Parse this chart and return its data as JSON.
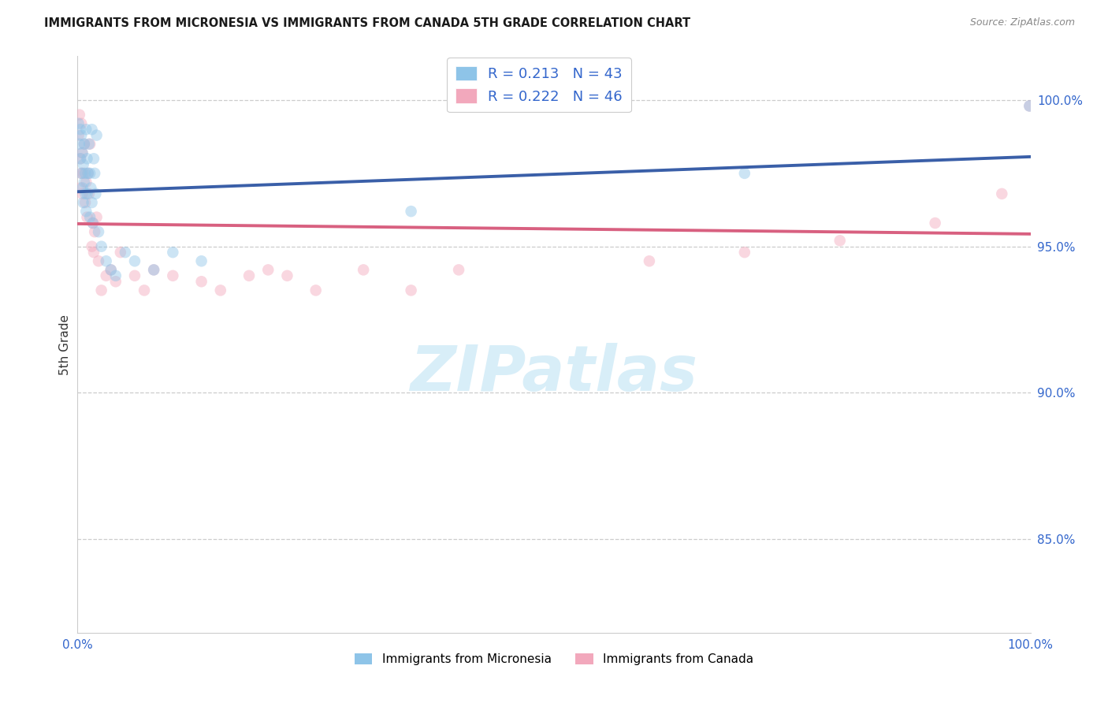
{
  "title": "IMMIGRANTS FROM MICRONESIA VS IMMIGRANTS FROM CANADA 5TH GRADE CORRELATION CHART",
  "source": "Source: ZipAtlas.com",
  "ylabel": "5th Grade",
  "y_ticks": [
    0.85,
    0.9,
    0.95,
    1.0
  ],
  "y_tick_labels": [
    "85.0%",
    "90.0%",
    "95.0%",
    "100.0%"
  ],
  "xlim": [
    0.0,
    1.0
  ],
  "ylim": [
    0.818,
    1.015
  ],
  "blue_R": 0.213,
  "blue_N": 43,
  "pink_R": 0.222,
  "pink_N": 46,
  "blue_color": "#8EC4E8",
  "pink_color": "#F2A8BC",
  "blue_line_color": "#3A5FA8",
  "pink_line_color": "#D86080",
  "scatter_alpha": 0.45,
  "scatter_size": 110,
  "watermark_text": "ZIPatlas",
  "watermark_color": "#d8eef8",
  "blue_x": [
    0.001,
    0.002,
    0.003,
    0.003,
    0.004,
    0.004,
    0.005,
    0.005,
    0.006,
    0.006,
    0.007,
    0.007,
    0.008,
    0.008,
    0.009,
    0.009,
    0.01,
    0.01,
    0.011,
    0.012,
    0.013,
    0.013,
    0.014,
    0.015,
    0.015,
    0.016,
    0.017,
    0.018,
    0.019,
    0.02,
    0.022,
    0.025,
    0.03,
    0.035,
    0.04,
    0.05,
    0.06,
    0.08,
    0.1,
    0.13,
    0.35,
    0.7,
    0.999
  ],
  "blue_y": [
    0.992,
    0.985,
    0.99,
    0.98,
    0.988,
    0.975,
    0.982,
    0.97,
    0.978,
    0.965,
    0.985,
    0.972,
    0.975,
    0.968,
    0.99,
    0.962,
    0.98,
    0.968,
    0.975,
    0.985,
    0.96,
    0.975,
    0.97,
    0.965,
    0.99,
    0.958,
    0.98,
    0.975,
    0.968,
    0.988,
    0.955,
    0.95,
    0.945,
    0.942,
    0.94,
    0.948,
    0.945,
    0.942,
    0.948,
    0.945,
    0.962,
    0.975,
    0.998
  ],
  "pink_x": [
    0.001,
    0.002,
    0.003,
    0.003,
    0.004,
    0.004,
    0.005,
    0.005,
    0.006,
    0.007,
    0.008,
    0.009,
    0.01,
    0.011,
    0.012,
    0.013,
    0.015,
    0.016,
    0.017,
    0.018,
    0.02,
    0.022,
    0.025,
    0.03,
    0.035,
    0.04,
    0.045,
    0.06,
    0.07,
    0.08,
    0.1,
    0.13,
    0.15,
    0.18,
    0.2,
    0.22,
    0.25,
    0.3,
    0.35,
    0.4,
    0.6,
    0.7,
    0.8,
    0.9,
    0.97,
    0.999
  ],
  "pink_y": [
    0.988,
    0.995,
    0.98,
    0.97,
    0.992,
    0.975,
    0.982,
    0.968,
    0.975,
    0.985,
    0.965,
    0.972,
    0.96,
    0.975,
    0.968,
    0.985,
    0.95,
    0.958,
    0.948,
    0.955,
    0.96,
    0.945,
    0.935,
    0.94,
    0.942,
    0.938,
    0.948,
    0.94,
    0.935,
    0.942,
    0.94,
    0.938,
    0.935,
    0.94,
    0.942,
    0.94,
    0.935,
    0.942,
    0.935,
    0.942,
    0.945,
    0.948,
    0.952,
    0.958,
    0.968,
    0.998
  ]
}
